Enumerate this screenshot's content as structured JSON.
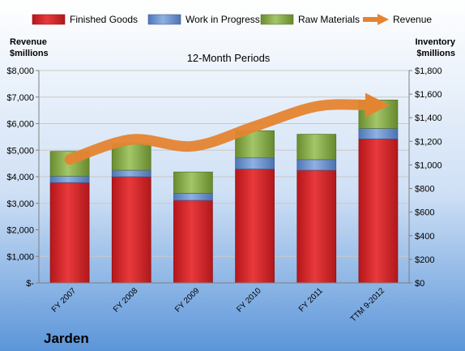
{
  "brand": "Jarden",
  "colors": {
    "finished_goods": "#e02226",
    "work_in_progress": "#6f95d1",
    "raw_materials": "#8db24e",
    "revenue": "#e58430"
  },
  "chart_data": {
    "type": "bar",
    "stacked": true,
    "title": "12-Month Periods",
    "left_axis_label": [
      "Revenue",
      "$millions"
    ],
    "right_axis_label": [
      "Inventory",
      "$millions"
    ],
    "categories": [
      "FY 2007",
      "FY 2008",
      "FY 2009",
      "FY 2010",
      "FY 2011",
      "TTM 9-2012"
    ],
    "series": [
      {
        "name": "Finished Goods",
        "axis": "right",
        "values": [
          850,
          900,
          700,
          965,
          955,
          1220
        ]
      },
      {
        "name": "Work in Progress",
        "axis": "right",
        "values": [
          55,
          55,
          60,
          95,
          90,
          90
        ]
      },
      {
        "name": "Raw Materials",
        "axis": "right",
        "values": [
          210,
          225,
          180,
          230,
          215,
          240
        ]
      }
    ],
    "revenue": {
      "name": "Revenue",
      "axis": "left",
      "values": [
        4650,
        5400,
        5150,
        5900,
        6650,
        6700
      ]
    },
    "left_axis": {
      "ylim": [
        0,
        8000
      ],
      "ticks": [
        0,
        1000,
        2000,
        3000,
        4000,
        5000,
        6000,
        7000,
        8000
      ],
      "tick_labels": [
        "$-",
        "$1,000",
        "$2,000",
        "$3,000",
        "$4,000",
        "$5,000",
        "$6,000",
        "$7,000",
        "$8,000"
      ]
    },
    "right_axis": {
      "ylim": [
        0,
        1800
      ],
      "ticks": [
        0,
        200,
        400,
        600,
        800,
        1000,
        1200,
        1400,
        1600,
        1800
      ],
      "tick_labels": [
        "$0",
        "$200",
        "$400",
        "$600",
        "$800",
        "$1,000",
        "$1,200",
        "$1,400",
        "$1,600",
        "$1,800"
      ]
    },
    "grid": true,
    "legend_position": "top"
  }
}
